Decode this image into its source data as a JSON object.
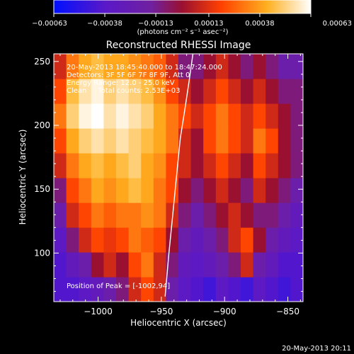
{
  "chart_data": {
    "type": "heatmap",
    "title": "Reconstructed RHESSI Image",
    "xlabel": "Heliocentric X (arcsec)",
    "ylabel": "Heliocentric Y (arcsec)",
    "xlim": [
      -1035,
      -838
    ],
    "ylim": [
      62,
      256
    ],
    "x_ticks": [
      -1000,
      -950,
      -900,
      -850
    ],
    "y_ticks": [
      100,
      150,
      200,
      250
    ],
    "x_tick_labels": [
      "−1000",
      "−950",
      "−900",
      "−850"
    ],
    "y_tick_labels": [
      "100",
      "150",
      "200",
      "250"
    ],
    "colorbar": {
      "range": [
        -0.00063,
        0.00063
      ],
      "ticks": [
        -0.00063,
        -0.00038,
        -0.00013,
        0.00013,
        0.00038,
        0.00063
      ],
      "tick_labels": [
        "−0.00063",
        "−0.00038",
        "−0.00013",
        "0.00013",
        "0.00038",
        "0.00063"
      ],
      "unit_label": "(photons cm⁻² s⁻¹ asec⁻²)",
      "colors": [
        "#0010ff",
        "#5a18c8",
        "#7020a0",
        "#9a1030",
        "#ff4000",
        "#ffb020",
        "#ffffff"
      ]
    },
    "annotations": [
      "20-May-2013 18:45:40.000 to 18:47:24.000",
      "Detectors: 3F 5F 6F 7F 8F 9F, Att 0",
      "Energy Range: 12.0 - 25.0 keV",
      "Clean     Total counts: 2.53E+03"
    ],
    "peak_label": "Position of Peak = [-1002,94]",
    "limb_line": {
      "x": [
        -947,
        -944,
        -941,
        -938,
        -935,
        -931,
        -928,
        -925
      ],
      "y": [
        66,
        100,
        130,
        160,
        190,
        215,
        235,
        256
      ]
    },
    "intensity": [
      [
        -0.0004,
        -0.0004,
        -0.00035,
        -0.0003,
        -0.0002,
        -0.0001,
        0.0001,
        0.0002,
        0.0001,
        -0.0002,
        -0.00035,
        -0.0004,
        -0.00045,
        -0.00035,
        -0.0004,
        -0.00045,
        -0.00035,
        -0.0004,
        -0.00045,
        -0.0004
      ],
      [
        -0.0004,
        -0.0003,
        -0.0002,
        0.0,
        0.0001,
        0.0,
        0.0002,
        0.0003,
        0.0001,
        -0.0001,
        -0.0003,
        -0.00035,
        -0.0003,
        -0.0002,
        -0.0001,
        0.0001,
        -0.0002,
        -0.0003,
        -0.0004,
        -0.0004
      ],
      [
        -0.00035,
        -0.0001,
        0.0001,
        0.0002,
        0.00015,
        0.0002,
        0.0003,
        0.00025,
        0.0002,
        0.0,
        -0.0002,
        -0.0003,
        -0.0002,
        -0.0001,
        0.0001,
        0.0002,
        0.0,
        -0.0002,
        -0.0003,
        -0.00035
      ],
      [
        -0.0002,
        0.0001,
        0.0002,
        0.0003,
        0.00025,
        0.0003,
        0.0003,
        0.00035,
        0.0003,
        0.0001,
        -0.0001,
        -0.0002,
        -0.0001,
        0.0,
        0.0001,
        0.0,
        -0.0001,
        -0.0001,
        -0.0002,
        -0.0003
      ],
      [
        -0.0001,
        0.0002,
        0.0003,
        0.0004,
        0.00035,
        0.0004,
        0.00045,
        0.0004,
        0.0003,
        0.0002,
        0.0,
        -0.0001,
        0.0,
        0.0001,
        0.0,
        -0.0001,
        0.0001,
        0.0,
        -0.0001,
        -0.0002
      ],
      [
        0.0001,
        0.0003,
        0.0004,
        0.00045,
        0.0004,
        0.00045,
        0.0005,
        0.0004,
        0.00035,
        0.0002,
        0.0001,
        0.0,
        0.0001,
        0.0002,
        0.0001,
        0.0,
        0.0002,
        0.0001,
        0.0,
        -0.0001
      ],
      [
        0.0002,
        0.0004,
        0.0005,
        0.00055,
        0.0005,
        0.00055,
        0.0005,
        0.00045,
        0.0004,
        0.0003,
        0.0001,
        0.0,
        0.0002,
        0.0003,
        0.0002,
        0.0001,
        0.0003,
        0.0002,
        0.0,
        -0.0001
      ],
      [
        0.0003,
        0.0005,
        0.0006,
        0.00063,
        0.00055,
        0.0006,
        0.00055,
        0.0005,
        0.0004,
        0.0003,
        0.0002,
        0.0001,
        0.0002,
        0.0003,
        0.0002,
        0.0001,
        0.0002,
        0.0001,
        0.0,
        -0.0001
      ],
      [
        0.0002,
        0.00045,
        0.00055,
        0.0006,
        0.0005,
        0.00055,
        0.0005,
        0.00045,
        0.00035,
        0.0002,
        0.0001,
        0.0,
        0.0001,
        0.0002,
        0.0001,
        0.0,
        0.0001,
        0.0,
        -0.0001,
        -0.0001
      ],
      [
        0.0001,
        0.0003,
        0.0004,
        0.00045,
        0.0004,
        0.0004,
        0.00035,
        0.0003,
        0.00025,
        0.0001,
        -0.0001,
        -0.0001,
        0.0,
        0.0001,
        0.0,
        -0.0001,
        0.0,
        -0.0001,
        -0.0002,
        -0.0002
      ]
    ]
  },
  "footer": {
    "timestamp": "20-May-2013 20:11"
  }
}
